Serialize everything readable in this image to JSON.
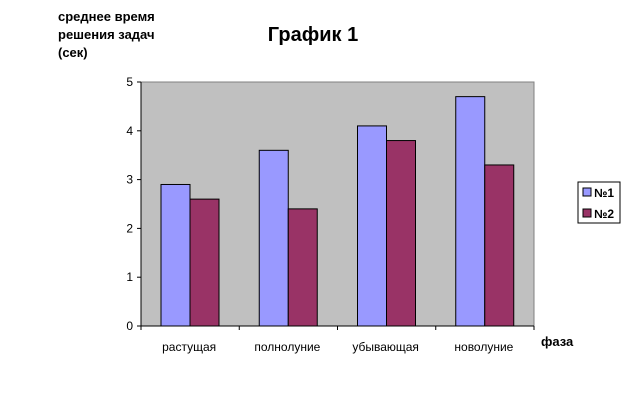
{
  "chart_data": {
    "type": "bar",
    "title": "График 1",
    "ylabel_lines": [
      "среднее время",
      "решения задач",
      "(сек)"
    ],
    "xlabel": "фаза",
    "categories": [
      "растущая",
      "полнолуние",
      "убывающая",
      "новолуние"
    ],
    "series": [
      {
        "name": "№1",
        "values": [
          2.9,
          3.6,
          4.1,
          4.7
        ],
        "color": "#9999FF"
      },
      {
        "name": "№2",
        "values": [
          2.6,
          2.4,
          3.8,
          3.3
        ],
        "color": "#993366"
      }
    ],
    "ylim": [
      0,
      5
    ],
    "yticks": [
      "0",
      "1",
      "2",
      "3",
      "4",
      "5"
    ],
    "plot_background": "#C0C0C0",
    "grid": false,
    "legend_position": "right"
  }
}
